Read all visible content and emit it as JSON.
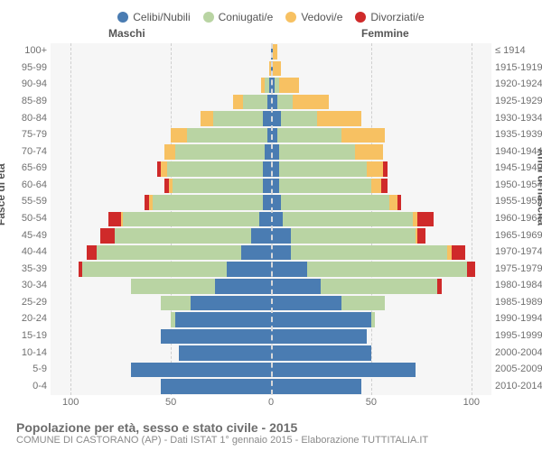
{
  "legend": [
    {
      "label": "Celibi/Nubili",
      "color": "#4a7cb2"
    },
    {
      "label": "Coniugati/e",
      "color": "#b9d4a3"
    },
    {
      "label": "Vedovi/e",
      "color": "#f7c162"
    },
    {
      "label": "Divorziati/e",
      "color": "#cf2a2a"
    }
  ],
  "headers": {
    "male": "Maschi",
    "female": "Femmine"
  },
  "axis": {
    "left_title": "Fasce di età",
    "right_title": "Anni di nascita",
    "x_ticks": [
      100,
      50,
      0,
      50,
      100
    ],
    "x_max": 110
  },
  "colors": {
    "plot_bg": "#f6f6f6",
    "grid": "#cfcfcf",
    "center": "#d9d9d9",
    "text": "#707070"
  },
  "age_labels": [
    "0-4",
    "5-9",
    "10-14",
    "15-19",
    "20-24",
    "25-29",
    "30-34",
    "35-39",
    "40-44",
    "45-49",
    "50-54",
    "55-59",
    "60-64",
    "65-69",
    "70-74",
    "75-79",
    "80-84",
    "85-89",
    "90-94",
    "95-99",
    "100+"
  ],
  "year_labels": [
    "2010-2014",
    "2005-2009",
    "2000-2004",
    "1995-1999",
    "1990-1994",
    "1985-1989",
    "1980-1984",
    "1975-1979",
    "1970-1974",
    "1965-1969",
    "1960-1964",
    "1955-1959",
    "1950-1954",
    "1945-1949",
    "1940-1944",
    "1935-1939",
    "1930-1934",
    "1925-1929",
    "1920-1924",
    "1915-1919",
    "≤ 1914"
  ],
  "male": {
    "single": [
      55,
      70,
      46,
      55,
      48,
      40,
      28,
      22,
      15,
      10,
      6,
      4,
      4,
      4,
      3,
      2,
      4,
      2,
      1,
      0,
      0
    ],
    "married": [
      0,
      0,
      0,
      0,
      2,
      15,
      42,
      72,
      72,
      68,
      68,
      55,
      45,
      48,
      45,
      40,
      25,
      12,
      2,
      0,
      0
    ],
    "widowed": [
      0,
      0,
      0,
      0,
      0,
      0,
      0,
      0,
      0,
      0,
      1,
      2,
      2,
      3,
      5,
      8,
      6,
      5,
      2,
      1,
      0
    ],
    "divorced": [
      0,
      0,
      0,
      0,
      0,
      0,
      0,
      2,
      5,
      7,
      6,
      2,
      2,
      2,
      0,
      0,
      0,
      0,
      0,
      0,
      0
    ]
  },
  "female": {
    "single": [
      45,
      72,
      50,
      48,
      50,
      35,
      25,
      18,
      10,
      10,
      6,
      5,
      4,
      4,
      4,
      3,
      5,
      3,
      2,
      1,
      1
    ],
    "married": [
      0,
      0,
      0,
      0,
      2,
      22,
      58,
      80,
      78,
      62,
      65,
      54,
      46,
      44,
      38,
      32,
      18,
      8,
      2,
      0,
      0
    ],
    "widowed": [
      0,
      0,
      0,
      0,
      0,
      0,
      0,
      0,
      2,
      1,
      2,
      4,
      5,
      8,
      14,
      22,
      22,
      18,
      10,
      4,
      2
    ],
    "divorced": [
      0,
      0,
      0,
      0,
      0,
      0,
      2,
      4,
      7,
      4,
      8,
      2,
      3,
      2,
      0,
      0,
      0,
      0,
      0,
      0,
      0
    ]
  },
  "caption": {
    "title": "Popolazione per età, sesso e stato civile - 2015",
    "subtitle": "COMUNE DI CASTORANO (AP) - Dati ISTAT 1° gennaio 2015 - Elaborazione TUTTITALIA.IT"
  }
}
